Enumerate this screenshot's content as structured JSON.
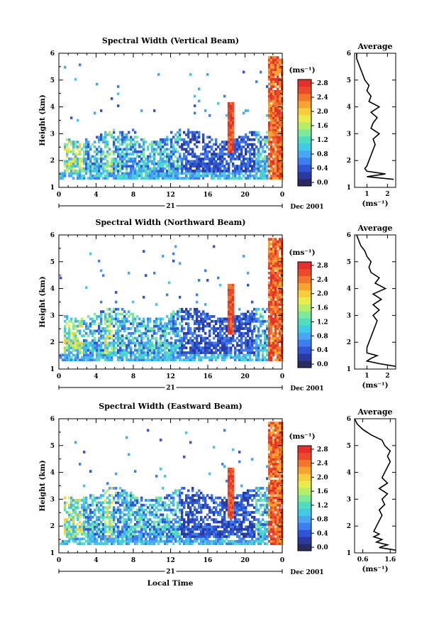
{
  "figure": {
    "xlabel": "Local Time",
    "date_day": "21",
    "date_month": "Dec 2001"
  },
  "chart_data": [
    {
      "type": "heatmap",
      "title": "Spectral Width (Vertical Beam)",
      "ylabel": "Height (km)",
      "xlim": [
        0,
        24
      ],
      "ylim": [
        1,
        6
      ],
      "x_ticks": [
        "0",
        "4",
        "8",
        "12",
        "16",
        "20",
        "0"
      ],
      "y_ticks": [
        "1",
        "2",
        "3",
        "4",
        "5",
        "6"
      ],
      "colorbar": {
        "unit": "(ms⁻¹)",
        "levels": [
          "0.0",
          "0.4",
          "0.8",
          "1.2",
          "1.6",
          "2.0",
          "2.4",
          "2.8"
        ]
      },
      "profile": {
        "title": "Average",
        "xlabel": "(ms⁻¹)",
        "xlim": [
          0.4,
          2.4
        ],
        "x_ticks": [
          "1",
          "2"
        ],
        "heights": [
          1.3,
          1.4,
          1.5,
          1.6,
          1.7,
          1.8,
          2.0,
          2.2,
          2.4,
          2.6,
          2.8,
          3.0,
          3.2,
          3.4,
          3.6,
          3.8,
          4.0,
          4.2,
          4.4,
          4.6,
          4.8,
          5.0,
          5.2,
          5.4,
          5.6,
          5.8,
          6.0
        ],
        "values": [
          2.3,
          1.0,
          1.9,
          1.0,
          0.9,
          1.0,
          1.1,
          1.2,
          1.3,
          1.4,
          1.3,
          1.6,
          1.2,
          1.3,
          1.5,
          1.2,
          1.6,
          1.1,
          1.2,
          1.0,
          1.1,
          0.9,
          0.8,
          0.7,
          0.6,
          0.5,
          0.5
        ]
      }
    },
    {
      "type": "heatmap",
      "title": "Spectral Width (Northward Beam)",
      "ylabel": "Height (km)",
      "xlim": [
        0,
        24
      ],
      "ylim": [
        1,
        6
      ],
      "x_ticks": [
        "0",
        "4",
        "8",
        "12",
        "16",
        "20",
        "0"
      ],
      "y_ticks": [
        "1",
        "2",
        "3",
        "4",
        "5",
        "6"
      ],
      "colorbar": {
        "unit": "(ms⁻¹)",
        "levels": [
          "0.0",
          "0.4",
          "0.8",
          "1.2",
          "1.6",
          "2.0",
          "2.4",
          "2.8"
        ]
      },
      "profile": {
        "title": "Average",
        "xlabel": "(ms⁻¹)",
        "xlim": [
          0.4,
          2.4
        ],
        "x_ticks": [
          "1",
          "2"
        ],
        "heights": [
          1.1,
          1.2,
          1.3,
          1.4,
          1.5,
          1.6,
          1.8,
          2.0,
          2.2,
          2.4,
          2.6,
          2.8,
          3.0,
          3.2,
          3.4,
          3.6,
          3.8,
          4.0,
          4.2,
          4.4,
          4.6,
          4.8,
          5.0,
          5.2,
          5.4,
          5.6,
          5.8,
          6.0
        ],
        "values": [
          2.4,
          1.6,
          1.0,
          1.2,
          1.5,
          1.0,
          1.0,
          1.1,
          1.2,
          1.3,
          1.4,
          1.5,
          1.3,
          1.6,
          1.3,
          1.7,
          1.3,
          1.9,
          1.4,
          1.6,
          1.2,
          1.1,
          1.2,
          1.0,
          0.9,
          0.7,
          0.6,
          0.5
        ]
      }
    },
    {
      "type": "heatmap",
      "title": "Spectral Width (Eastward Beam)",
      "ylabel": "Height (km)",
      "xlim": [
        0,
        24
      ],
      "ylim": [
        1,
        6
      ],
      "x_ticks": [
        "0",
        "4",
        "8",
        "12",
        "16",
        "20",
        "0"
      ],
      "y_ticks": [
        "1",
        "2",
        "3",
        "4",
        "5",
        "6"
      ],
      "colorbar": {
        "unit": "(ms⁻¹)",
        "levels": [
          "0.0",
          "0.4",
          "0.8",
          "1.2",
          "1.6",
          "2.0",
          "2.4",
          "2.8"
        ]
      },
      "profile": {
        "title": "Average",
        "xlabel": "(ms⁻¹)",
        "xlim": [
          0.3,
          1.8
        ],
        "x_ticks": [
          "0.6",
          "1.6"
        ],
        "heights": [
          1.1,
          1.2,
          1.3,
          1.4,
          1.5,
          1.6,
          1.7,
          1.8,
          2.0,
          2.2,
          2.4,
          2.6,
          2.8,
          3.0,
          3.2,
          3.4,
          3.6,
          3.8,
          4.0,
          4.2,
          4.4,
          4.6,
          4.8,
          5.0,
          5.2,
          5.4,
          5.6,
          5.8,
          6.0
        ],
        "values": [
          1.8,
          1.2,
          1.5,
          1.1,
          1.3,
          1.0,
          1.2,
          1.0,
          1.1,
          1.2,
          1.3,
          1.2,
          1.4,
          1.3,
          1.5,
          1.2,
          1.5,
          1.3,
          1.4,
          1.5,
          1.6,
          1.5,
          1.6,
          1.4,
          1.3,
          0.9,
          0.6,
          0.4,
          0.3
        ]
      }
    }
  ]
}
